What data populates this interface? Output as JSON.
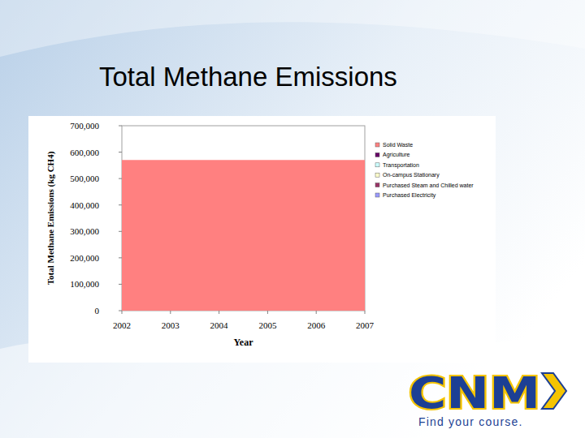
{
  "chart_data": {
    "type": "area",
    "title": "Total Methane Emissions",
    "x_label": "Year",
    "y_label": "Total Methane Emissions (kg CH4)",
    "x": [
      2002,
      2003,
      2004,
      2005,
      2006,
      2007
    ],
    "xlim": [
      2002,
      2007
    ],
    "xticks": [
      2002,
      2003,
      2004,
      2005,
      2006,
      2007
    ],
    "ylim": [
      0,
      700000
    ],
    "yticks": [
      0,
      {
        "value": 100000,
        "label": "100,000"
      },
      {
        "value": 200000,
        "label": "200,000"
      },
      {
        "value": 300000,
        "label": "300,000"
      },
      {
        "value": 400000,
        "label": "400,000"
      },
      {
        "value": 500000,
        "label": "500,000"
      },
      {
        "value": 600000,
        "label": "600,000"
      },
      {
        "value": 700000,
        "label": "700,000"
      }
    ],
    "stacked": true,
    "grid": false,
    "legend": "right",
    "series": [
      {
        "name": "Solid Waste",
        "color": "#ff8080",
        "values": [
          570000,
          570000,
          570000,
          570000,
          570000,
          570000
        ]
      },
      {
        "name": "Agriculture",
        "color": "#660066",
        "values": [
          0,
          0,
          0,
          0,
          0,
          0
        ]
      },
      {
        "name": "Transportation",
        "color": "#ccffff",
        "values": [
          0,
          0,
          0,
          0,
          0,
          0
        ]
      },
      {
        "name": "On-campus Stationary",
        "color": "#ffffcc",
        "values": [
          0,
          0,
          0,
          0,
          0,
          0
        ]
      },
      {
        "name": "Purchased Steam and Chilled water",
        "color": "#993366",
        "values": [
          0,
          0,
          0,
          0,
          0,
          0
        ]
      },
      {
        "name": "Purchased Electricity",
        "color": "#9999ff",
        "values": [
          0,
          0,
          0,
          0,
          0,
          0
        ]
      }
    ]
  },
  "logo": {
    "text": "CNM",
    "tagline": "Find your course."
  }
}
